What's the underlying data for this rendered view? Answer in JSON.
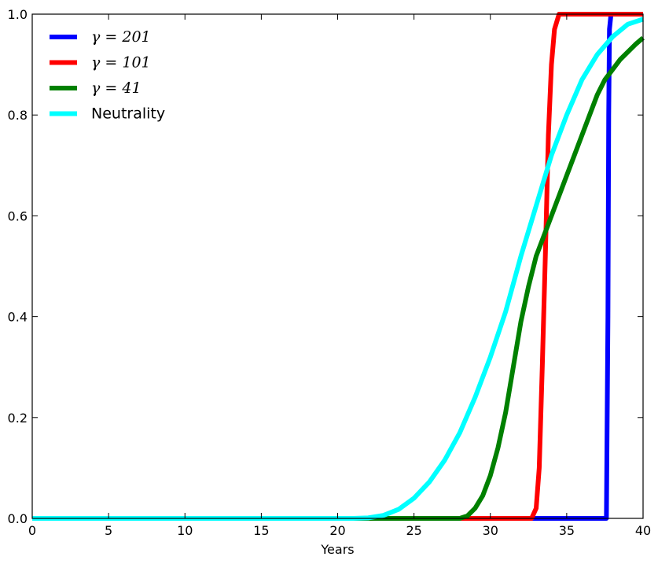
{
  "chart_data": {
    "type": "line",
    "title": "",
    "xlabel": "Years",
    "ylabel": "",
    "xlim": [
      0,
      40
    ],
    "ylim": [
      0,
      1.0
    ],
    "xticks": [
      0,
      5,
      10,
      15,
      20,
      25,
      30,
      35,
      40
    ],
    "xtick_labels": [
      "0",
      "5",
      "10",
      "15",
      "20",
      "25",
      "30",
      "35",
      "40"
    ],
    "yticks": [
      0.0,
      0.2,
      0.4,
      0.6,
      0.8,
      1.0
    ],
    "ytick_labels": [
      "0.0",
      "0.2",
      "0.4",
      "0.6",
      "0.8",
      "1.0"
    ],
    "grid": false,
    "legend_position": "top-left",
    "series": [
      {
        "name": "γ = 201",
        "color": "#0000ff",
        "x": [
          0,
          37.6,
          37.7,
          37.75,
          37.8,
          37.9,
          40
        ],
        "y": [
          0,
          0,
          0.4,
          0.8,
          0.97,
          1.0,
          1.0
        ]
      },
      {
        "name": "γ = 101",
        "color": "#ff0000",
        "x": [
          0,
          32.7,
          33.0,
          33.2,
          33.4,
          33.6,
          33.8,
          34.0,
          34.2,
          34.5,
          35.0,
          40
        ],
        "y": [
          0,
          0,
          0.02,
          0.1,
          0.3,
          0.52,
          0.76,
          0.9,
          0.97,
          1.0,
          1.0,
          1.0
        ]
      },
      {
        "name": "γ = 41",
        "color": "#008000",
        "x": [
          0,
          28,
          28.5,
          29,
          29.5,
          30,
          30.5,
          31,
          31.5,
          32,
          32.5,
          33,
          33.5,
          34,
          34.5,
          35,
          35.5,
          36,
          36.5,
          37,
          37.5,
          38,
          38.5,
          39,
          39.5,
          40
        ],
        "y": [
          0,
          0,
          0.005,
          0.02,
          0.045,
          0.085,
          0.14,
          0.21,
          0.3,
          0.39,
          0.46,
          0.52,
          0.56,
          0.6,
          0.64,
          0.68,
          0.72,
          0.76,
          0.8,
          0.84,
          0.87,
          0.89,
          0.91,
          0.925,
          0.94,
          0.953
        ]
      },
      {
        "name": "Neutrality",
        "color": "#00ffff",
        "x": [
          0,
          21,
          22,
          23,
          24,
          25,
          26,
          27,
          28,
          29,
          30,
          31,
          32,
          33,
          34,
          35,
          36,
          37,
          38,
          39,
          40
        ],
        "y": [
          0,
          0,
          0.001,
          0.006,
          0.018,
          0.04,
          0.072,
          0.115,
          0.17,
          0.24,
          0.32,
          0.41,
          0.52,
          0.62,
          0.72,
          0.8,
          0.87,
          0.92,
          0.955,
          0.98,
          0.99
        ]
      }
    ]
  }
}
